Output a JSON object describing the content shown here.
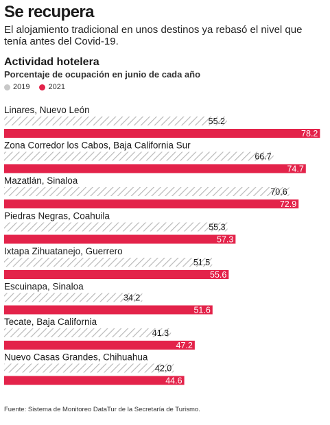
{
  "header": {
    "title": "Se recupera",
    "subtitle": "El alojamiento tradicional en unos destinos ya rebasó el nivel que tenía antes del Covid-19."
  },
  "chart_data": {
    "type": "bar",
    "orientation": "horizontal",
    "title": "Actividad hotelera",
    "subtitle": "Porcentaje de ocupación en junio de cada año",
    "categories": [
      "Linares, Nuevo León",
      "Zona Corredor los Cabos, Baja California Sur",
      "Mazatlán, Sinaloa",
      "Piedras Negras, Coahuila",
      "Ixtapa Zihuatanejo, Guerrero",
      "Escuinapa, Sinaloa",
      "Tecate, Baja California",
      "Nuevo Casas Grandes, Chihuahua"
    ],
    "series": [
      {
        "name": "2019",
        "color": "#c8c8c8",
        "pattern": "diagonal-hatch",
        "values": [
          55.2,
          66.7,
          70.6,
          55.3,
          51.5,
          34.2,
          41.3,
          42.0
        ],
        "labels": [
          "55.2",
          "66.7",
          "70.6",
          "55.3",
          "51.5",
          "34.2",
          "41.3",
          "42.0"
        ]
      },
      {
        "name": "2021",
        "color": "#e3234a",
        "values": [
          78.2,
          74.7,
          72.9,
          57.3,
          55.6,
          51.6,
          47.2,
          44.6
        ],
        "labels": [
          "78.2",
          "74.7",
          "72.9",
          "57.3",
          "55.6",
          "51.6",
          "47.2",
          "44.6"
        ]
      }
    ],
    "xlim": [
      0,
      80
    ],
    "grid": false,
    "legend_position": "top-left"
  },
  "source": "Fuente: Sistema de Monitoreo DataTur de la Secretaría de Turismo."
}
